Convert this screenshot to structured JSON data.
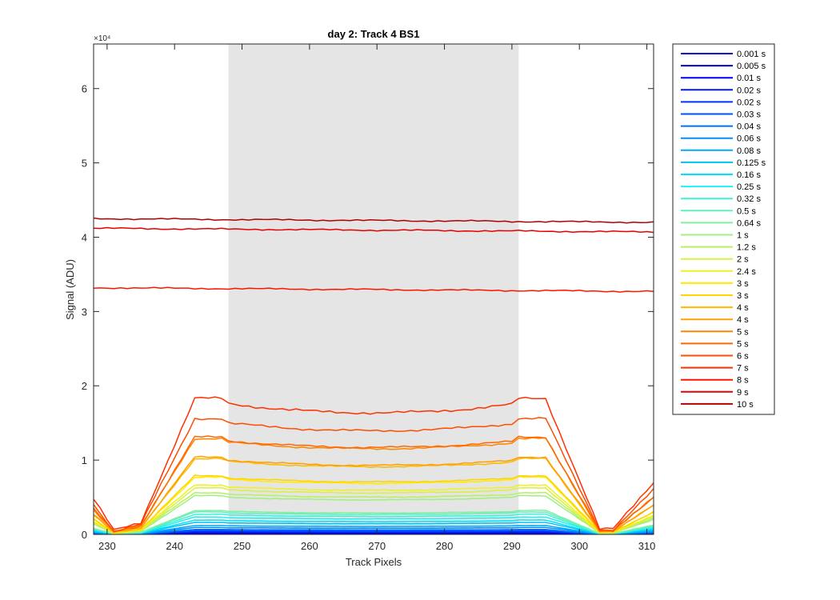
{
  "chart_data": {
    "type": "line",
    "title": "day 2: Track 4  BS1",
    "xlabel": "Track Pixels",
    "ylabel": "Signal (ADU)",
    "y_exponent_label": "×10⁴",
    "xlim": [
      228,
      311
    ],
    "ylim": [
      0,
      66000
    ],
    "xticks": [
      230,
      240,
      250,
      260,
      270,
      280,
      290,
      300,
      310
    ],
    "yticks": [
      0,
      10000,
      20000,
      30000,
      40000,
      50000,
      60000
    ],
    "ytick_labels": [
      "0",
      "1",
      "2",
      "3",
      "4",
      "5",
      "6"
    ],
    "shaded_region": {
      "x_start": 248,
      "x_end": 291,
      "color": "#e5e5e5"
    },
    "grid": false,
    "legend_position": "outside-right",
    "series": [
      {
        "name": "0.001 s",
        "color": "#0000a0",
        "kind": "profile",
        "plateau": 20
      },
      {
        "name": "0.005 s",
        "color": "#0000c8",
        "kind": "profile",
        "plateau": 100
      },
      {
        "name": "0.01 s",
        "color": "#0000ff",
        "kind": "profile",
        "plateau": 200
      },
      {
        "name": "0.02 s",
        "color": "#0018ff",
        "kind": "profile",
        "plateau": 350
      },
      {
        "name": "0.02 s",
        "color": "#0030ff",
        "kind": "profile",
        "plateau": 350
      },
      {
        "name": "0.03 s",
        "color": "#0050ff",
        "kind": "profile",
        "plateau": 500
      },
      {
        "name": "0.04 s",
        "color": "#0070ff",
        "kind": "profile",
        "plateau": 650
      },
      {
        "name": "0.06 s",
        "color": "#0090ff",
        "kind": "profile",
        "plateau": 900
      },
      {
        "name": "0.08 s",
        "color": "#00a8ff",
        "kind": "profile",
        "plateau": 1150
      },
      {
        "name": "0.125 s",
        "color": "#00c4f0",
        "kind": "profile",
        "plateau": 1550
      },
      {
        "name": "0.16 s",
        "color": "#00e0ff",
        "kind": "profile",
        "plateau": 1850
      },
      {
        "name": "0.25 s",
        "color": "#20f0f0",
        "kind": "profile",
        "plateau": 2250
      },
      {
        "name": "0.32 s",
        "color": "#40f0d8",
        "kind": "profile",
        "plateau": 2600
      },
      {
        "name": "0.5 s",
        "color": "#60f0c0",
        "kind": "profile",
        "plateau": 2900
      },
      {
        "name": "0.64 s",
        "color": "#80f0a0",
        "kind": "profile",
        "plateau": 3100
      },
      {
        "name": "1 s",
        "color": "#a0f080",
        "kind": "profile",
        "plateau": 5000
      },
      {
        "name": "1.2 s",
        "color": "#b8f060",
        "kind": "profile",
        "plateau": 5400
      },
      {
        "name": "2 s",
        "color": "#d8f040",
        "kind": "profile",
        "plateau": 6000
      },
      {
        "name": "2.4 s",
        "color": "#f0f020",
        "kind": "profile",
        "plateau": 6400
      },
      {
        "name": "3 s",
        "color": "#ffea00",
        "kind": "profile",
        "plateau": 7400
      },
      {
        "name": "3 s",
        "color": "#ffd400",
        "kind": "profile",
        "plateau": 7600
      },
      {
        "name": "4 s",
        "color": "#ffb800",
        "kind": "profile",
        "plateau": 9800
      },
      {
        "name": "4 s",
        "color": "#ffa000",
        "kind": "profile",
        "plateau": 10000
      },
      {
        "name": "5 s",
        "color": "#ff8400",
        "kind": "profile",
        "plateau": 12400
      },
      {
        "name": "5 s",
        "color": "#ff6800",
        "kind": "profile",
        "plateau": 12600
      },
      {
        "name": "6 s",
        "color": "#ff4c00",
        "kind": "profile",
        "plateau": 15000
      },
      {
        "name": "7 s",
        "color": "#ff3000",
        "kind": "profile",
        "plateau": 17600
      },
      {
        "name": "8 s",
        "color": "#ff1400",
        "kind": "flat",
        "level": 33200
      },
      {
        "name": "9 s",
        "color": "#e80000",
        "kind": "flat",
        "level": 41200
      },
      {
        "name": "10 s",
        "color": "#b00000",
        "kind": "flat",
        "level": 42500
      }
    ]
  }
}
